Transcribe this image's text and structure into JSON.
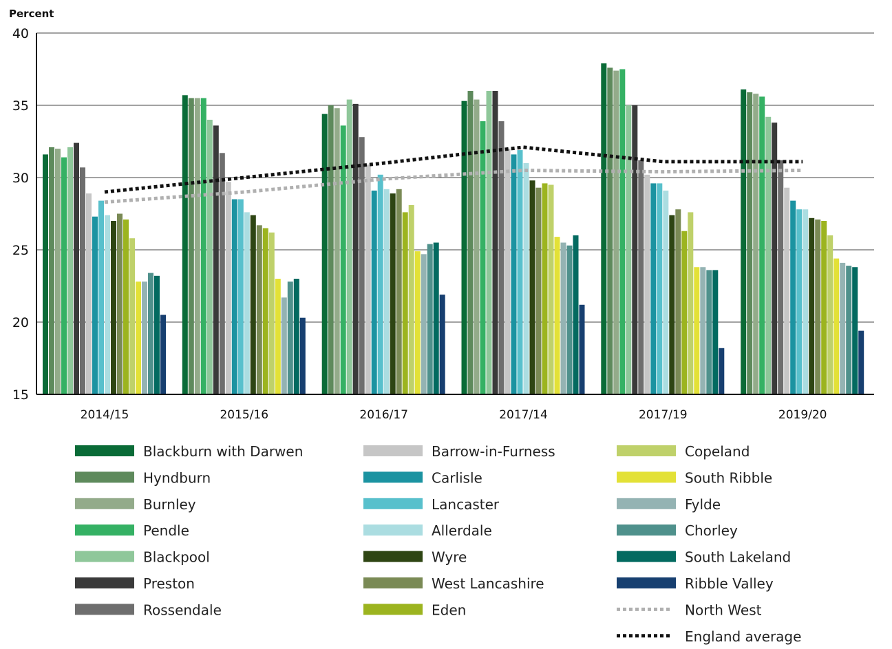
{
  "chart_data": {
    "type": "bar",
    "unit_label": "Percent",
    "ylim": [
      15,
      40
    ],
    "yticks": [
      15,
      20,
      25,
      30,
      35,
      40
    ],
    "grid": true,
    "legend_position": "bottom",
    "categories": [
      "2014/15",
      "2015/16",
      "2016/17",
      "2017/14",
      "2017/19",
      "2019/20"
    ],
    "series": [
      {
        "name": "Blackburn with Darwen",
        "color": "#0a6b37",
        "values": [
          31.6,
          35.7,
          34.4,
          35.3,
          37.9,
          36.1
        ]
      },
      {
        "name": "Hyndburn",
        "color": "#5e8a5c",
        "values": [
          32.1,
          35.5,
          35.0,
          36.0,
          37.6,
          35.9
        ]
      },
      {
        "name": "Burnley",
        "color": "#93ab8a",
        "values": [
          32.0,
          35.5,
          34.8,
          35.4,
          37.4,
          35.8
        ]
      },
      {
        "name": "Pendle",
        "color": "#35b164",
        "values": [
          31.4,
          35.5,
          33.6,
          33.9,
          37.5,
          35.6
        ]
      },
      {
        "name": "Blackpool",
        "color": "#8fc79a",
        "values": [
          32.1,
          34.0,
          35.4,
          36.0,
          35.0,
          34.2
        ]
      },
      {
        "name": "Preston",
        "color": "#3a3a3a",
        "values": [
          32.4,
          33.6,
          35.1,
          36.0,
          35.0,
          33.8
        ]
      },
      {
        "name": "Rossendale",
        "color": "#6e6e6e",
        "values": [
          30.7,
          31.7,
          32.8,
          33.9,
          31.2,
          31.2
        ]
      },
      {
        "name": "Barrow-in-Furness",
        "color": "#c6c6c6",
        "values": [
          28.9,
          29.7,
          30.9,
          32.0,
          30.2,
          29.3
        ]
      },
      {
        "name": "Carlisle",
        "color": "#1b93a1",
        "values": [
          27.3,
          28.5,
          29.1,
          31.6,
          29.6,
          28.4
        ]
      },
      {
        "name": "Lancaster",
        "color": "#58c0cc",
        "values": [
          28.4,
          28.5,
          30.2,
          31.9,
          29.6,
          27.8
        ]
      },
      {
        "name": "Allerdale",
        "color": "#abdde1",
        "values": [
          27.4,
          27.6,
          29.2,
          31.0,
          29.1,
          27.8
        ]
      },
      {
        "name": "Wyre",
        "color": "#2e4513",
        "values": [
          27.0,
          27.4,
          28.9,
          29.8,
          27.4,
          27.2
        ]
      },
      {
        "name": "West Lancashire",
        "color": "#7a8a55",
        "values": [
          27.5,
          26.7,
          29.2,
          29.3,
          27.8,
          27.1
        ]
      },
      {
        "name": "Eden",
        "color": "#9cb41f",
        "values": [
          27.1,
          26.5,
          27.6,
          29.6,
          26.3,
          27.0
        ]
      },
      {
        "name": "Copeland",
        "color": "#bfd16a",
        "values": [
          25.8,
          26.2,
          28.1,
          29.5,
          27.6,
          26.0
        ]
      },
      {
        "name": "South Ribble",
        "color": "#e3e137",
        "values": [
          22.8,
          23.0,
          24.9,
          25.9,
          23.8,
          24.4
        ]
      },
      {
        "name": "Fylde",
        "color": "#94b3b3",
        "values": [
          22.8,
          21.7,
          24.7,
          25.5,
          23.8,
          24.1
        ]
      },
      {
        "name": "Chorley",
        "color": "#4f918c",
        "values": [
          23.4,
          22.8,
          25.4,
          25.3,
          23.6,
          23.9
        ]
      },
      {
        "name": "South Lakeland",
        "color": "#036a60",
        "values": [
          23.2,
          23.0,
          25.5,
          26.0,
          23.6,
          23.8
        ]
      },
      {
        "name": "Ribble Valley",
        "color": "#173f70",
        "values": [
          20.5,
          20.3,
          21.9,
          21.2,
          18.2,
          19.4
        ]
      }
    ],
    "lines": [
      {
        "name": "North West",
        "color": "#b0b0b0",
        "style": "dotted",
        "values": [
          28.3,
          29.0,
          29.9,
          30.5,
          30.4,
          30.5
        ]
      },
      {
        "name": "England average",
        "color": "#111111",
        "style": "dotted",
        "values": [
          29.0,
          30.0,
          31.0,
          32.1,
          31.1,
          31.1
        ]
      }
    ]
  }
}
